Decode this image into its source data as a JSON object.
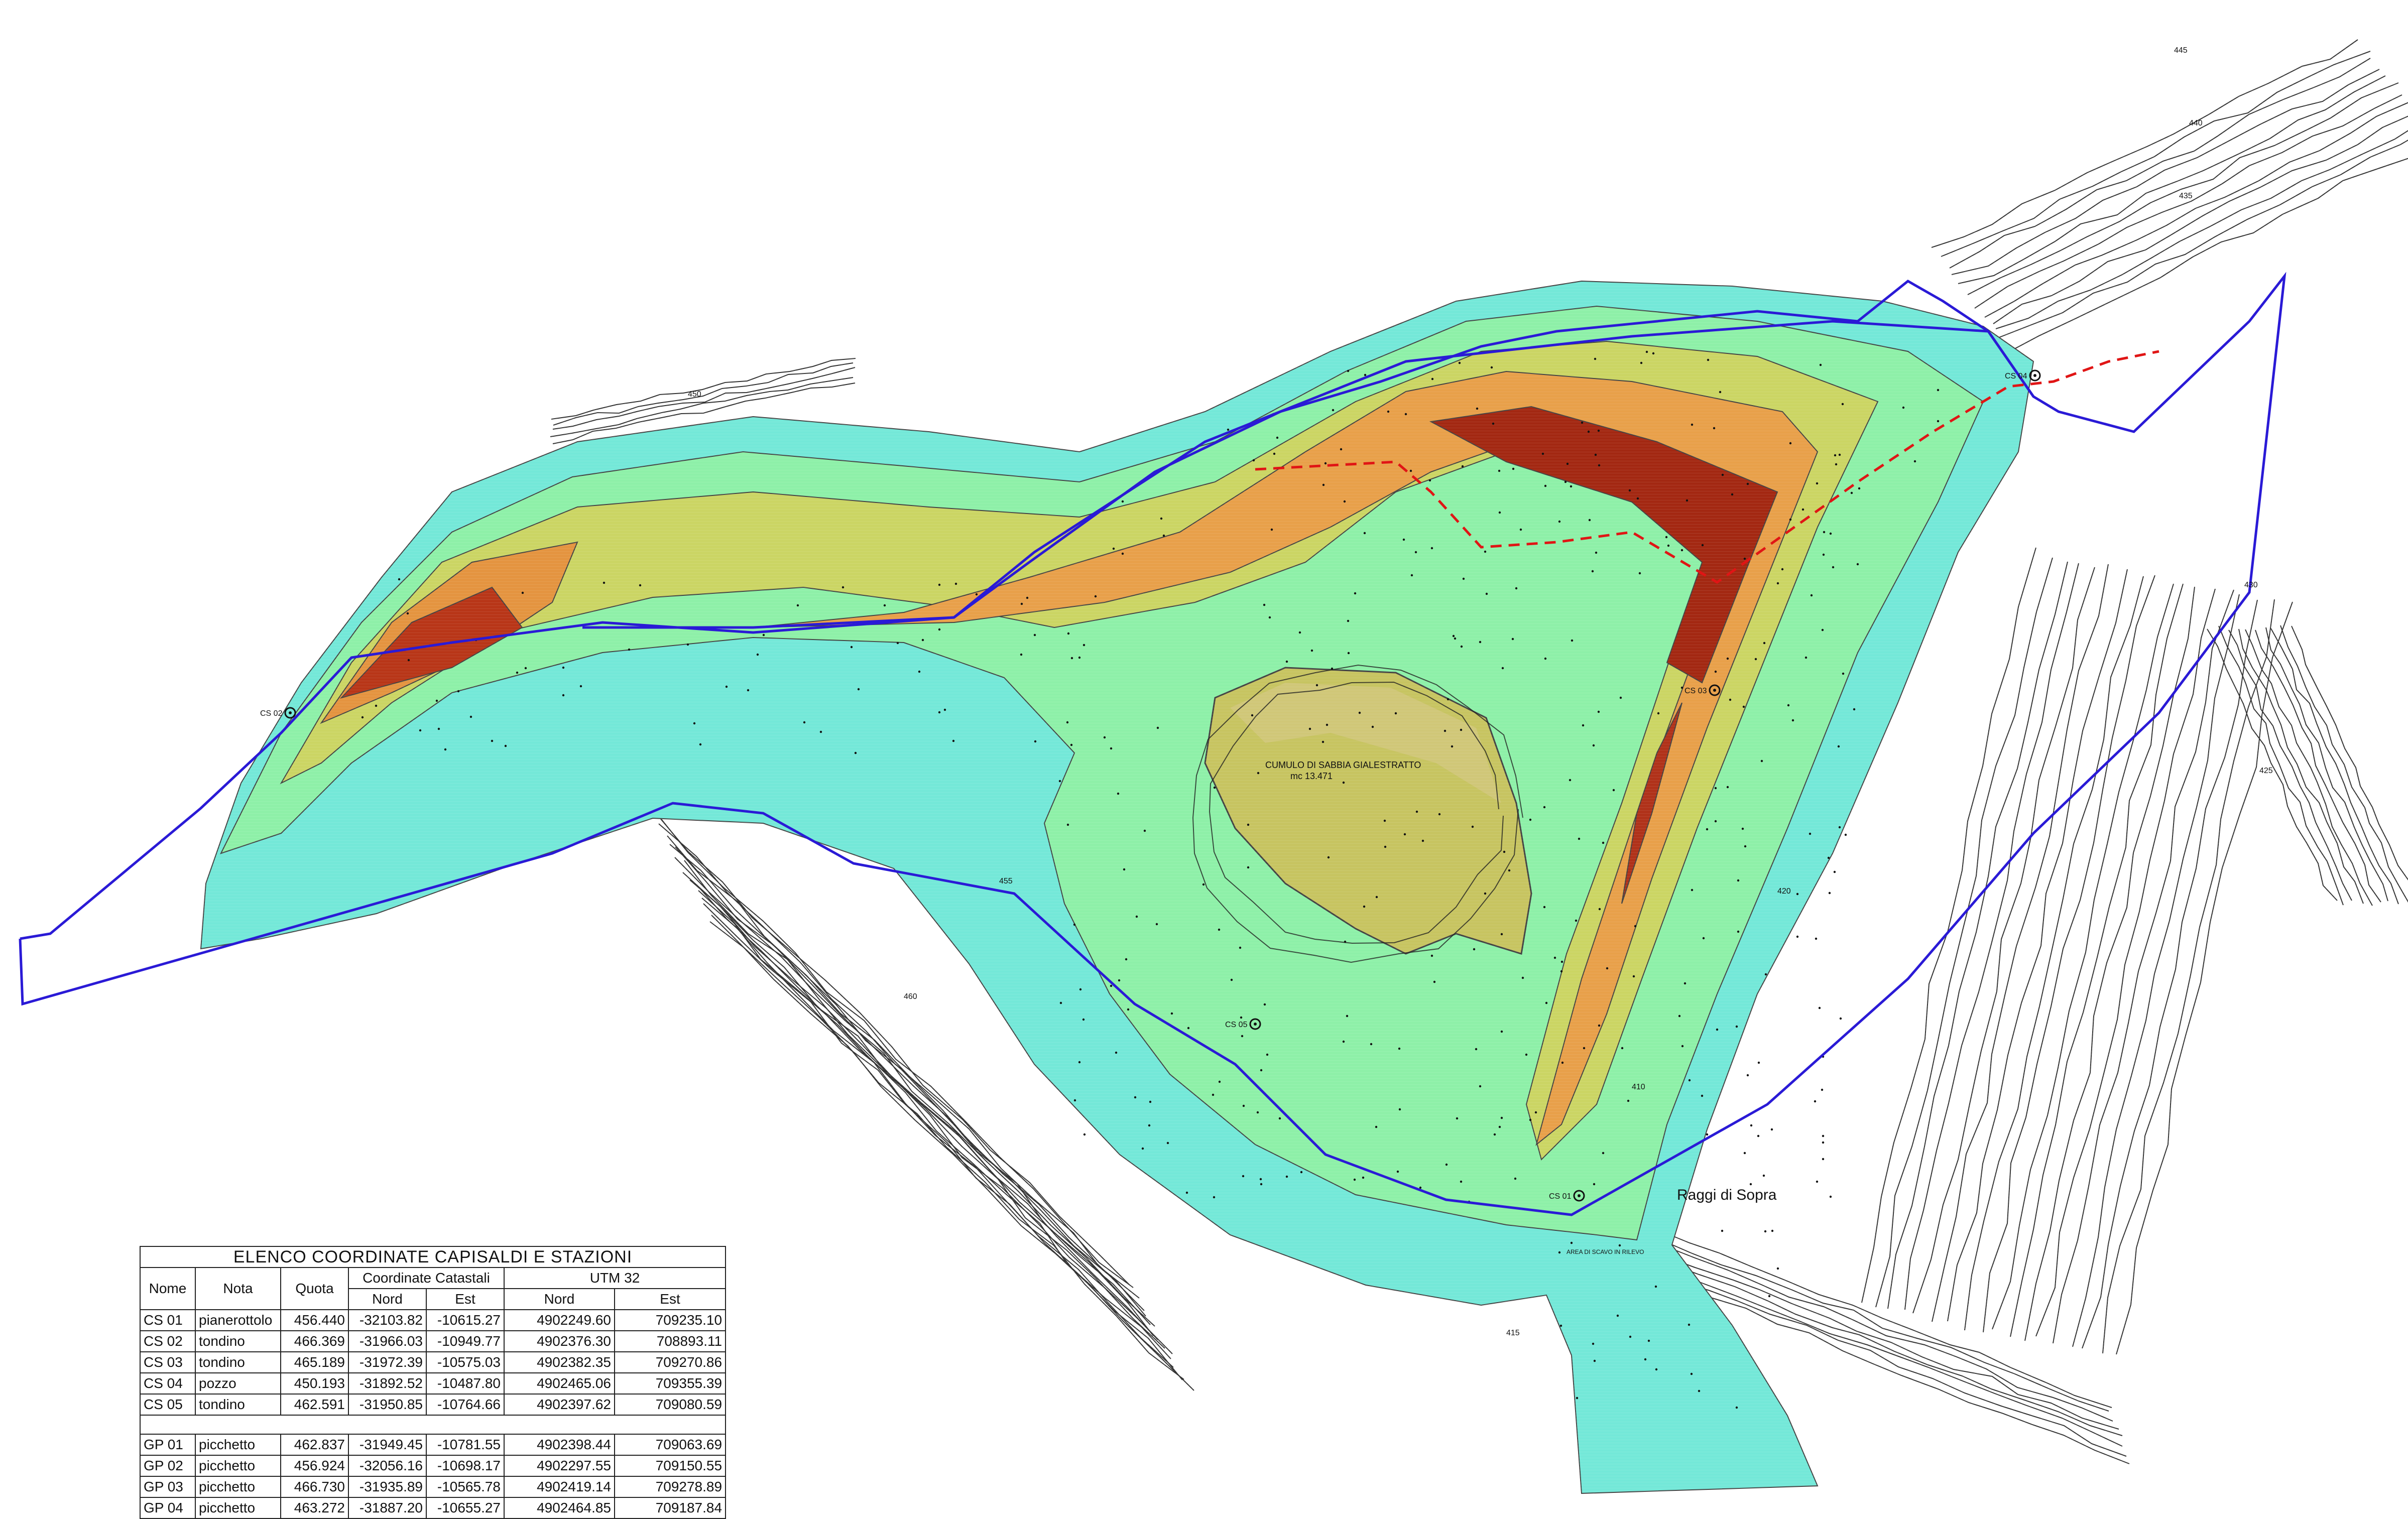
{
  "map": {
    "stockpile_label_line1": "CUMULO DI SABBIA GIALESTRATTO",
    "stockpile_label_line2": "mc 13.471",
    "place_name": "Raggi di Sopra",
    "station_labels": [
      "CS 01",
      "CS 02",
      "CS 03",
      "CS 04",
      "CS 05"
    ],
    "bottom_note": "AREA DI SCAVO IN RILEVO",
    "contour_labels": [
      "450",
      "445",
      "440",
      "435",
      "430",
      "425",
      "420",
      "415",
      "410",
      "455",
      "460"
    ],
    "colors": {
      "boundary_blue": "#2a1ad6",
      "dashed_red": "#e01515",
      "low_cyan": "#6ee6d4",
      "green": "#62d67a",
      "yellow": "#c8c85a",
      "orange": "#e08a3c",
      "high_red": "#a82a14",
      "contour": "#222222"
    }
  },
  "table": {
    "title": "ELENCO COORDINATE  CAPISALDI E STAZIONI",
    "headers": {
      "nome": "Nome",
      "nota": "Nota",
      "quota": "Quota",
      "catastali": "Coordinate Catastali",
      "utm": "UTM 32",
      "nord": "Nord",
      "est": "Est"
    },
    "rows_cs": [
      {
        "nome": "CS 01",
        "nota": "pianerottolo",
        "quota": "456.440",
        "cat_nord": "-32103.82",
        "cat_est": "-10615.27",
        "utm_nord": "4902249.60",
        "utm_est": "709235.10"
      },
      {
        "nome": "CS 02",
        "nota": "tondino",
        "quota": "466.369",
        "cat_nord": "-31966.03",
        "cat_est": "-10949.77",
        "utm_nord": "4902376.30",
        "utm_est": "708893.11"
      },
      {
        "nome": "CS 03",
        "nota": "tondino",
        "quota": "465.189",
        "cat_nord": "-31972.39",
        "cat_est": "-10575.03",
        "utm_nord": "4902382.35",
        "utm_est": "709270.86"
      },
      {
        "nome": "CS 04",
        "nota": "pozzo",
        "quota": "450.193",
        "cat_nord": "-31892.52",
        "cat_est": "-10487.80",
        "utm_nord": "4902465.06",
        "utm_est": "709355.39"
      },
      {
        "nome": "CS 05",
        "nota": "tondino",
        "quota": "462.591",
        "cat_nord": "-31950.85",
        "cat_est": "-10764.66",
        "utm_nord": "4902397.62",
        "utm_est": "709080.59"
      }
    ],
    "rows_gp": [
      {
        "nome": "GP 01",
        "nota": "picchetto",
        "quota": "462.837",
        "cat_nord": "-31949.45",
        "cat_est": "-10781.55",
        "utm_nord": "4902398.44",
        "utm_est": "709063.69"
      },
      {
        "nome": "GP 02",
        "nota": "picchetto",
        "quota": "456.924",
        "cat_nord": "-32056.16",
        "cat_est": "-10698.17",
        "utm_nord": "4902297.55",
        "utm_est": "709150.55"
      },
      {
        "nome": "GP 03",
        "nota": "picchetto",
        "quota": "466.730",
        "cat_nord": "-31935.89",
        "cat_est": "-10565.78",
        "utm_nord": "4902419.14",
        "utm_est": "709278.89"
      },
      {
        "nome": "GP 04",
        "nota": "picchetto",
        "quota": "463.272",
        "cat_nord": "-31887.20",
        "cat_est": "-10655.27",
        "utm_nord": "4902464.85",
        "utm_est": "709187.84"
      }
    ]
  }
}
